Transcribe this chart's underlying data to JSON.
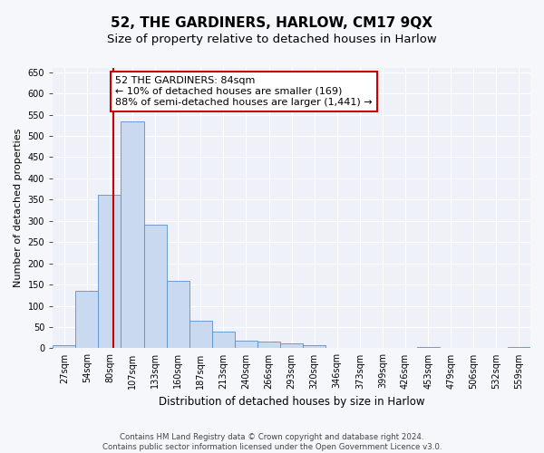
{
  "title": "52, THE GARDINERS, HARLOW, CM17 9QX",
  "subtitle": "Size of property relative to detached houses in Harlow",
  "xlabel": "Distribution of detached houses by size in Harlow",
  "ylabel": "Number of detached properties",
  "bin_labels": [
    "27sqm",
    "54sqm",
    "80sqm",
    "107sqm",
    "133sqm",
    "160sqm",
    "187sqm",
    "213sqm",
    "240sqm",
    "266sqm",
    "293sqm",
    "320sqm",
    "346sqm",
    "373sqm",
    "399sqm",
    "426sqm",
    "453sqm",
    "479sqm",
    "506sqm",
    "532sqm",
    "559sqm"
  ],
  "bar_values": [
    8,
    135,
    362,
    535,
    290,
    158,
    65,
    40,
    18,
    15,
    12,
    8,
    0,
    0,
    0,
    0,
    3,
    0,
    0,
    0,
    3
  ],
  "bar_color": "#c9d9ef",
  "bar_edge_color": "#5b8fcc",
  "vline_x": 2.15,
  "vline_color": "#cc0000",
  "annotation_text": "52 THE GARDINERS: 84sqm\n← 10% of detached houses are smaller (169)\n88% of semi-detached houses are larger (1,441) →",
  "annotation_box_color": "#ffffff",
  "annotation_box_edge": "#cc0000",
  "ylim": [
    0,
    660
  ],
  "yticks": [
    0,
    50,
    100,
    150,
    200,
    250,
    300,
    350,
    400,
    450,
    500,
    550,
    600,
    650
  ],
  "footer_line1": "Contains HM Land Registry data © Crown copyright and database right 2024.",
  "footer_line2": "Contains public sector information licensed under the Open Government Licence v3.0.",
  "bg_color": "#eef2f8",
  "grid_color": "#ffffff",
  "fig_bg_color": "#f5f7fa",
  "title_fontsize": 11,
  "subtitle_fontsize": 9.5,
  "annotation_fontsize": 8,
  "tick_fontsize": 7,
  "ylabel_fontsize": 8,
  "xlabel_fontsize": 8.5
}
